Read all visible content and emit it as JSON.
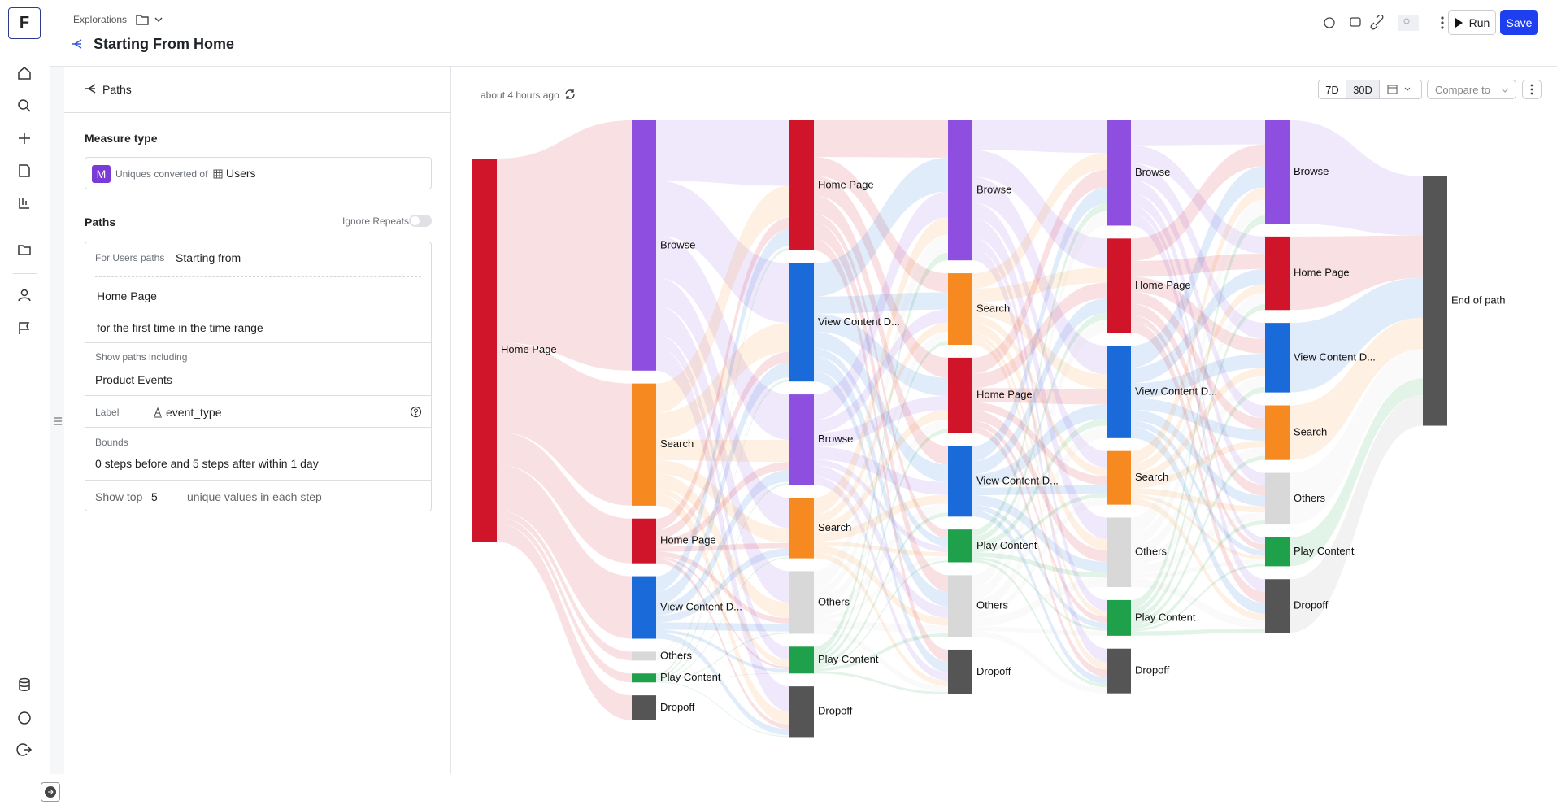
{
  "nav": {
    "logo": "F"
  },
  "header": {
    "breadcrumb": "Explorations",
    "title": "Starting From Home",
    "run": "Run",
    "save": "Save"
  },
  "panel": {
    "tab": "Paths",
    "measure_type": "Measure type",
    "measure_badge": "M",
    "measure_prefix": "Uniques converted of",
    "measure_entity": "Users",
    "paths_title": "Paths",
    "ignore_repeats": "Ignore Repeats",
    "for_label": "For Users paths",
    "starting": "Starting from",
    "start_event": "Home Page",
    "first_time": "for the first time in the time range",
    "show_paths_label": "Show paths including",
    "show_paths_value": "Product Events",
    "label_label": "Label",
    "label_value": "event_type",
    "bounds_label": "Bounds",
    "bounds_value": "0 steps before and 5 steps after within 1 day",
    "show_top_prefix": "Show top",
    "show_top_value": 5,
    "show_top_suffix": "unique values in each step"
  },
  "toolbar": {
    "updated": "about 4 hours ago",
    "range_7d": "7D",
    "range_30d": "30D",
    "compare": "Compare to"
  },
  "sankey": {
    "columns": [
      [
        {
          "label": "Home Page",
          "value": 386,
          "color": "#d0152a"
        }
      ],
      [
        {
          "label": "Browse",
          "value": 252,
          "color": "#8e4fe0"
        },
        {
          "label": "Search",
          "value": 123,
          "color": "#f6891f"
        },
        {
          "label": "Home Page",
          "value": 45,
          "color": "#d0152a"
        },
        {
          "label": "View Content D...",
          "value": 63,
          "color": "#1a6bd9"
        },
        {
          "label": "Others",
          "value": 9,
          "color": "#d8d8d8"
        },
        {
          "label": "Play Content",
          "value": 9,
          "color": "#1fa04a"
        },
        {
          "label": "Dropoff",
          "value": 25,
          "color": "#555555"
        }
      ],
      [
        {
          "label": "Home Page",
          "value": 131,
          "color": "#d0152a"
        },
        {
          "label": "View Content D...",
          "value": 119,
          "color": "#1a6bd9"
        },
        {
          "label": "Browse",
          "value": 91,
          "color": "#8e4fe0"
        },
        {
          "label": "Search",
          "value": 61,
          "color": "#f6891f"
        },
        {
          "label": "Others",
          "value": 63,
          "color": "#d8d8d8"
        },
        {
          "label": "Play Content",
          "value": 27,
          "color": "#1fa04a"
        },
        {
          "label": "Dropoff",
          "value": 51,
          "color": "#555555"
        }
      ],
      [
        {
          "label": "Browse",
          "value": 141,
          "color": "#8e4fe0"
        },
        {
          "label": "Search",
          "value": 72,
          "color": "#f6891f"
        },
        {
          "label": "Home Page",
          "value": 76,
          "color": "#d0152a"
        },
        {
          "label": "View Content D...",
          "value": 71,
          "color": "#1a6bd9"
        },
        {
          "label": "Play Content",
          "value": 33,
          "color": "#1fa04a"
        },
        {
          "label": "Others",
          "value": 62,
          "color": "#d8d8d8"
        },
        {
          "label": "Dropoff",
          "value": 45,
          "color": "#555555"
        }
      ],
      [
        {
          "label": "Browse",
          "value": 106,
          "color": "#8e4fe0"
        },
        {
          "label": "Home Page",
          "value": 95,
          "color": "#d0152a"
        },
        {
          "label": "View Content D...",
          "value": 93,
          "color": "#1a6bd9"
        },
        {
          "label": "Search",
          "value": 54,
          "color": "#f6891f"
        },
        {
          "label": "Others",
          "value": 70,
          "color": "#d8d8d8"
        },
        {
          "label": "Play Content",
          "value": 36,
          "color": "#1fa04a"
        },
        {
          "label": "Dropoff",
          "value": 45,
          "color": "#555555"
        }
      ],
      [
        {
          "label": "Browse",
          "value": 104,
          "color": "#8e4fe0"
        },
        {
          "label": "Home Page",
          "value": 74,
          "color": "#d0152a"
        },
        {
          "label": "View Content D...",
          "value": 70,
          "color": "#1a6bd9"
        },
        {
          "label": "Search",
          "value": 55,
          "color": "#f6891f"
        },
        {
          "label": "Others",
          "value": 52,
          "color": "#d8d8d8"
        },
        {
          "label": "Play Content",
          "value": 29,
          "color": "#1fa04a"
        },
        {
          "label": "Dropoff",
          "value": 54,
          "color": "#555555"
        }
      ],
      [
        {
          "label": "End of path",
          "value": 251,
          "color": "#555555"
        }
      ]
    ]
  }
}
